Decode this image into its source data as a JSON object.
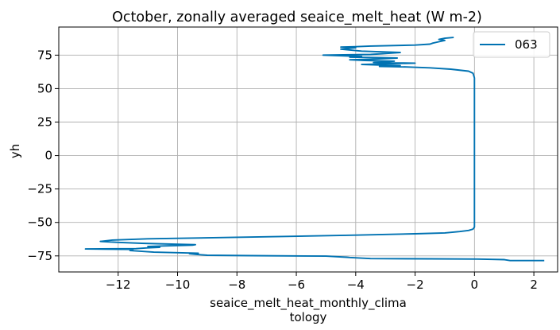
{
  "chart_data": {
    "type": "line",
    "title": "October, zonally averaged seaice_melt_heat (W m-2)",
    "xlabel_lines": [
      "seaice_melt_heat_monthly_clima",
      "tology"
    ],
    "ylabel": "yh",
    "xlim": [
      -14.0,
      2.8
    ],
    "ylim": [
      -87,
      96
    ],
    "xticks": [
      -12,
      -10,
      -8,
      -6,
      -4,
      -2,
      0,
      2
    ],
    "xtick_labels": [
      "−12",
      "−10",
      "−8",
      "−6",
      "−4",
      "−2",
      "0",
      "2"
    ],
    "yticks": [
      -75,
      -50,
      -25,
      0,
      25,
      50,
      75
    ],
    "ytick_labels": [
      "−75",
      "−50",
      "−25",
      "0",
      "25",
      "50",
      "75"
    ],
    "grid": true,
    "legend_position": "top-right",
    "series": [
      {
        "name": "063",
        "color": "#0072b2",
        "points": [
          [
            2.35,
            -78.5
          ],
          [
            1.2,
            -78.5
          ],
          [
            1.0,
            -77.8
          ],
          [
            0.6,
            -77.6
          ],
          [
            0.1,
            -77.4
          ],
          [
            -1.5,
            -77.2
          ],
          [
            -3.5,
            -77.0
          ],
          [
            -4.2,
            -76.2
          ],
          [
            -4.3,
            -76.0
          ],
          [
            -5.0,
            -75.2
          ],
          [
            -7.5,
            -74.8
          ],
          [
            -9.0,
            -74.5
          ],
          [
            -9.4,
            -73.8
          ],
          [
            -9.6,
            -73.4
          ],
          [
            -9.3,
            -73.0
          ],
          [
            -10.8,
            -72.2
          ],
          [
            -11.6,
            -71.0
          ],
          [
            -11.5,
            -70.2
          ],
          [
            -13.1,
            -69.8
          ],
          [
            -11.4,
            -69.6
          ],
          [
            -11.0,
            -69.0
          ],
          [
            -10.6,
            -68.6
          ],
          [
            -11.0,
            -68.0
          ],
          [
            -10.5,
            -67.6
          ],
          [
            -9.5,
            -67.0
          ],
          [
            -9.4,
            -66.6
          ],
          [
            -10.2,
            -66.2
          ],
          [
            -11.2,
            -65.6
          ],
          [
            -12.0,
            -64.9
          ],
          [
            -12.6,
            -64.2
          ],
          [
            -12.2,
            -63.2
          ],
          [
            -11.0,
            -62.2
          ],
          [
            -9.0,
            -61.5
          ],
          [
            -6.5,
            -60.5
          ],
          [
            -4.0,
            -59.5
          ],
          [
            -2.0,
            -58.5
          ],
          [
            -1.0,
            -57.8
          ],
          [
            -0.5,
            -56.8
          ],
          [
            -0.2,
            -56.0
          ],
          [
            -0.05,
            -55.0
          ],
          [
            0.0,
            -53.5
          ],
          [
            0.0,
            -20.0
          ],
          [
            0.0,
            20.0
          ],
          [
            0.0,
            58.0
          ],
          [
            -0.05,
            61.5
          ],
          [
            -0.2,
            63.0
          ],
          [
            -0.8,
            64.5
          ],
          [
            -1.5,
            65.5
          ],
          [
            -2.3,
            66.2
          ],
          [
            -2.8,
            66.4
          ],
          [
            -3.2,
            66.6
          ],
          [
            -2.5,
            67.2
          ],
          [
            -3.0,
            67.5
          ],
          [
            -3.8,
            68.0
          ],
          [
            -3.0,
            68.5
          ],
          [
            -2.0,
            69.0
          ],
          [
            -3.4,
            69.5
          ],
          [
            -2.7,
            70.5
          ],
          [
            -3.7,
            71.0
          ],
          [
            -4.2,
            71.5
          ],
          [
            -3.5,
            72.0
          ],
          [
            -2.6,
            72.8
          ],
          [
            -3.2,
            73.2
          ],
          [
            -4.2,
            73.5
          ],
          [
            -3.8,
            74.0
          ],
          [
            -5.1,
            75.0
          ],
          [
            -3.5,
            75.5
          ],
          [
            -2.5,
            77.0
          ],
          [
            -3.2,
            77.5
          ],
          [
            -3.8,
            78.0
          ],
          [
            -4.5,
            79.5
          ],
          [
            -4.0,
            80.5
          ],
          [
            -4.3,
            80.9
          ],
          [
            -4.5,
            81.0
          ],
          [
            -4.0,
            81.3
          ],
          [
            -3.5,
            81.8
          ],
          [
            -2.0,
            82.5
          ],
          [
            -1.5,
            83.2
          ],
          [
            -1.4,
            84.0
          ],
          [
            -1.2,
            85.0
          ],
          [
            -1.0,
            86.0
          ],
          [
            -1.2,
            86.8
          ],
          [
            -1.0,
            87.6
          ],
          [
            -0.7,
            88.2
          ]
        ]
      }
    ]
  }
}
